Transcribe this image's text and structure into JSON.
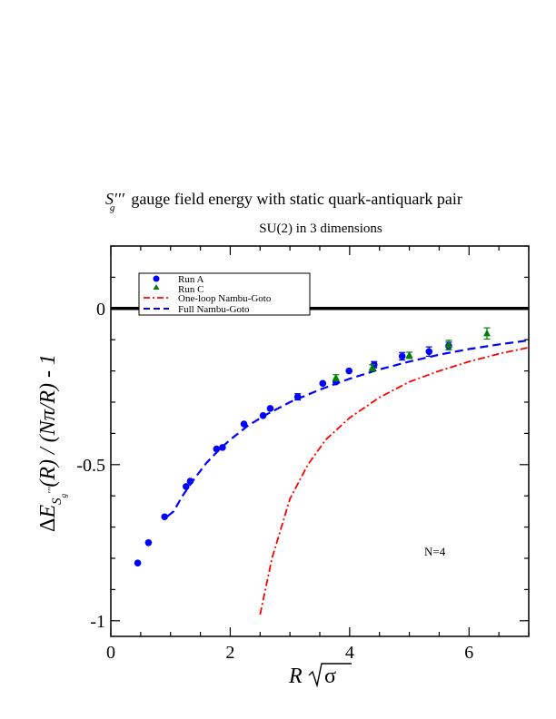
{
  "chart_data": {
    "type": "scatter",
    "title_main": "gauge field energy with static quark-antiquark pair",
    "title_symbol": {
      "base": "S",
      "primes": "′′′",
      "sub": "g"
    },
    "subtitle": "SU(2) in 3 dimensions",
    "xlabel": {
      "base": "R",
      "sigma": "σ"
    },
    "ylabel": {
      "delta": "Δ",
      "E": "E",
      "sub_S": "S",
      "sub_primes": "′′′",
      "sub_g": "g",
      "tail": "(R) / (Nπ/R) - 1"
    },
    "xlim": [
      0,
      7
    ],
    "ylim": [
      -1.05,
      0.2
    ],
    "xticks": [
      0,
      2,
      4,
      6
    ],
    "xtick_labels": [
      "0",
      "2",
      "4",
      "6"
    ],
    "yticks": [
      0,
      -0.5,
      -1
    ],
    "ytick_labels": [
      "0",
      "-0.5",
      "-1"
    ],
    "annotation": "N=4",
    "zero_line": 0,
    "legend": {
      "position": "top-left",
      "entries": [
        {
          "label": "Run A",
          "marker": "circle",
          "color": "#0000ff"
        },
        {
          "label": "Run C",
          "marker": "triangle",
          "color": "#008000"
        },
        {
          "label": "One-loop Nambu-Goto",
          "line": "dash-dot",
          "color": "#ff0000"
        },
        {
          "label": "Full Nambu-Goto",
          "line": "dashed",
          "color": "#0000ff"
        }
      ]
    },
    "series": [
      {
        "name": "Run A",
        "marker": "circle",
        "color": "#0000ff",
        "points": [
          {
            "x": 0.45,
            "y": -0.815,
            "err": 0
          },
          {
            "x": 0.63,
            "y": -0.75,
            "err": 0
          },
          {
            "x": 0.9,
            "y": -0.667,
            "err": 0
          },
          {
            "x": 1.26,
            "y": -0.57,
            "err": 0
          },
          {
            "x": 1.33,
            "y": -0.553,
            "err": 0
          },
          {
            "x": 1.77,
            "y": -0.45,
            "err": 0
          },
          {
            "x": 1.87,
            "y": -0.445,
            "err": 0
          },
          {
            "x": 2.23,
            "y": -0.37,
            "err": 0
          },
          {
            "x": 2.55,
            "y": -0.343,
            "err": 0
          },
          {
            "x": 2.67,
            "y": -0.32,
            "err": 0
          },
          {
            "x": 3.13,
            "y": -0.283,
            "err": 0.01
          },
          {
            "x": 3.55,
            "y": -0.24,
            "err": 0
          },
          {
            "x": 3.77,
            "y": -0.235,
            "err": 0
          },
          {
            "x": 3.99,
            "y": -0.2,
            "err": 0
          },
          {
            "x": 4.41,
            "y": -0.18,
            "err": 0.01
          },
          {
            "x": 4.88,
            "y": -0.153,
            "err": 0.012
          },
          {
            "x": 5.33,
            "y": -0.138,
            "err": 0.015
          },
          {
            "x": 5.66,
            "y": -0.12,
            "err": 0.012
          }
        ]
      },
      {
        "name": "Run C",
        "marker": "triangle",
        "color": "#008000",
        "points": [
          {
            "x": 3.77,
            "y": -0.222,
            "err": 0.01
          },
          {
            "x": 4.38,
            "y": -0.19,
            "err": 0.01
          },
          {
            "x": 5.0,
            "y": -0.15,
            "err": 0.01
          },
          {
            "x": 5.66,
            "y": -0.117,
            "err": 0.015
          },
          {
            "x": 6.3,
            "y": -0.08,
            "err": 0.018
          }
        ]
      },
      {
        "name": "One-loop Nambu-Goto",
        "line": "dash-dot",
        "color": "#ff0000",
        "points": [
          {
            "x": 2.5,
            "y": -0.98
          },
          {
            "x": 2.7,
            "y": -0.8
          },
          {
            "x": 3.0,
            "y": -0.61
          },
          {
            "x": 3.3,
            "y": -0.5
          },
          {
            "x": 3.6,
            "y": -0.42
          },
          {
            "x": 4.0,
            "y": -0.35
          },
          {
            "x": 4.5,
            "y": -0.285
          },
          {
            "x": 5.0,
            "y": -0.235
          },
          {
            "x": 5.5,
            "y": -0.2
          },
          {
            "x": 6.0,
            "y": -0.17
          },
          {
            "x": 6.5,
            "y": -0.145
          },
          {
            "x": 7.0,
            "y": -0.125
          }
        ]
      },
      {
        "name": "Full Nambu-Goto",
        "line": "dashed",
        "color": "#0000ff",
        "points": [
          {
            "x": 0.95,
            "y": -0.665
          },
          {
            "x": 1.05,
            "y": -0.65
          },
          {
            "x": 1.2,
            "y": -0.6
          },
          {
            "x": 1.4,
            "y": -0.545
          },
          {
            "x": 1.6,
            "y": -0.495
          },
          {
            "x": 1.8,
            "y": -0.455
          },
          {
            "x": 2.0,
            "y": -0.42
          },
          {
            "x": 2.3,
            "y": -0.375
          },
          {
            "x": 2.6,
            "y": -0.34
          },
          {
            "x": 3.0,
            "y": -0.3
          },
          {
            "x": 3.5,
            "y": -0.26
          },
          {
            "x": 4.0,
            "y": -0.225
          },
          {
            "x": 4.5,
            "y": -0.195
          },
          {
            "x": 5.0,
            "y": -0.17
          },
          {
            "x": 5.5,
            "y": -0.148
          },
          {
            "x": 6.0,
            "y": -0.13
          },
          {
            "x": 6.5,
            "y": -0.115
          },
          {
            "x": 7.0,
            "y": -0.102
          }
        ]
      }
    ]
  }
}
